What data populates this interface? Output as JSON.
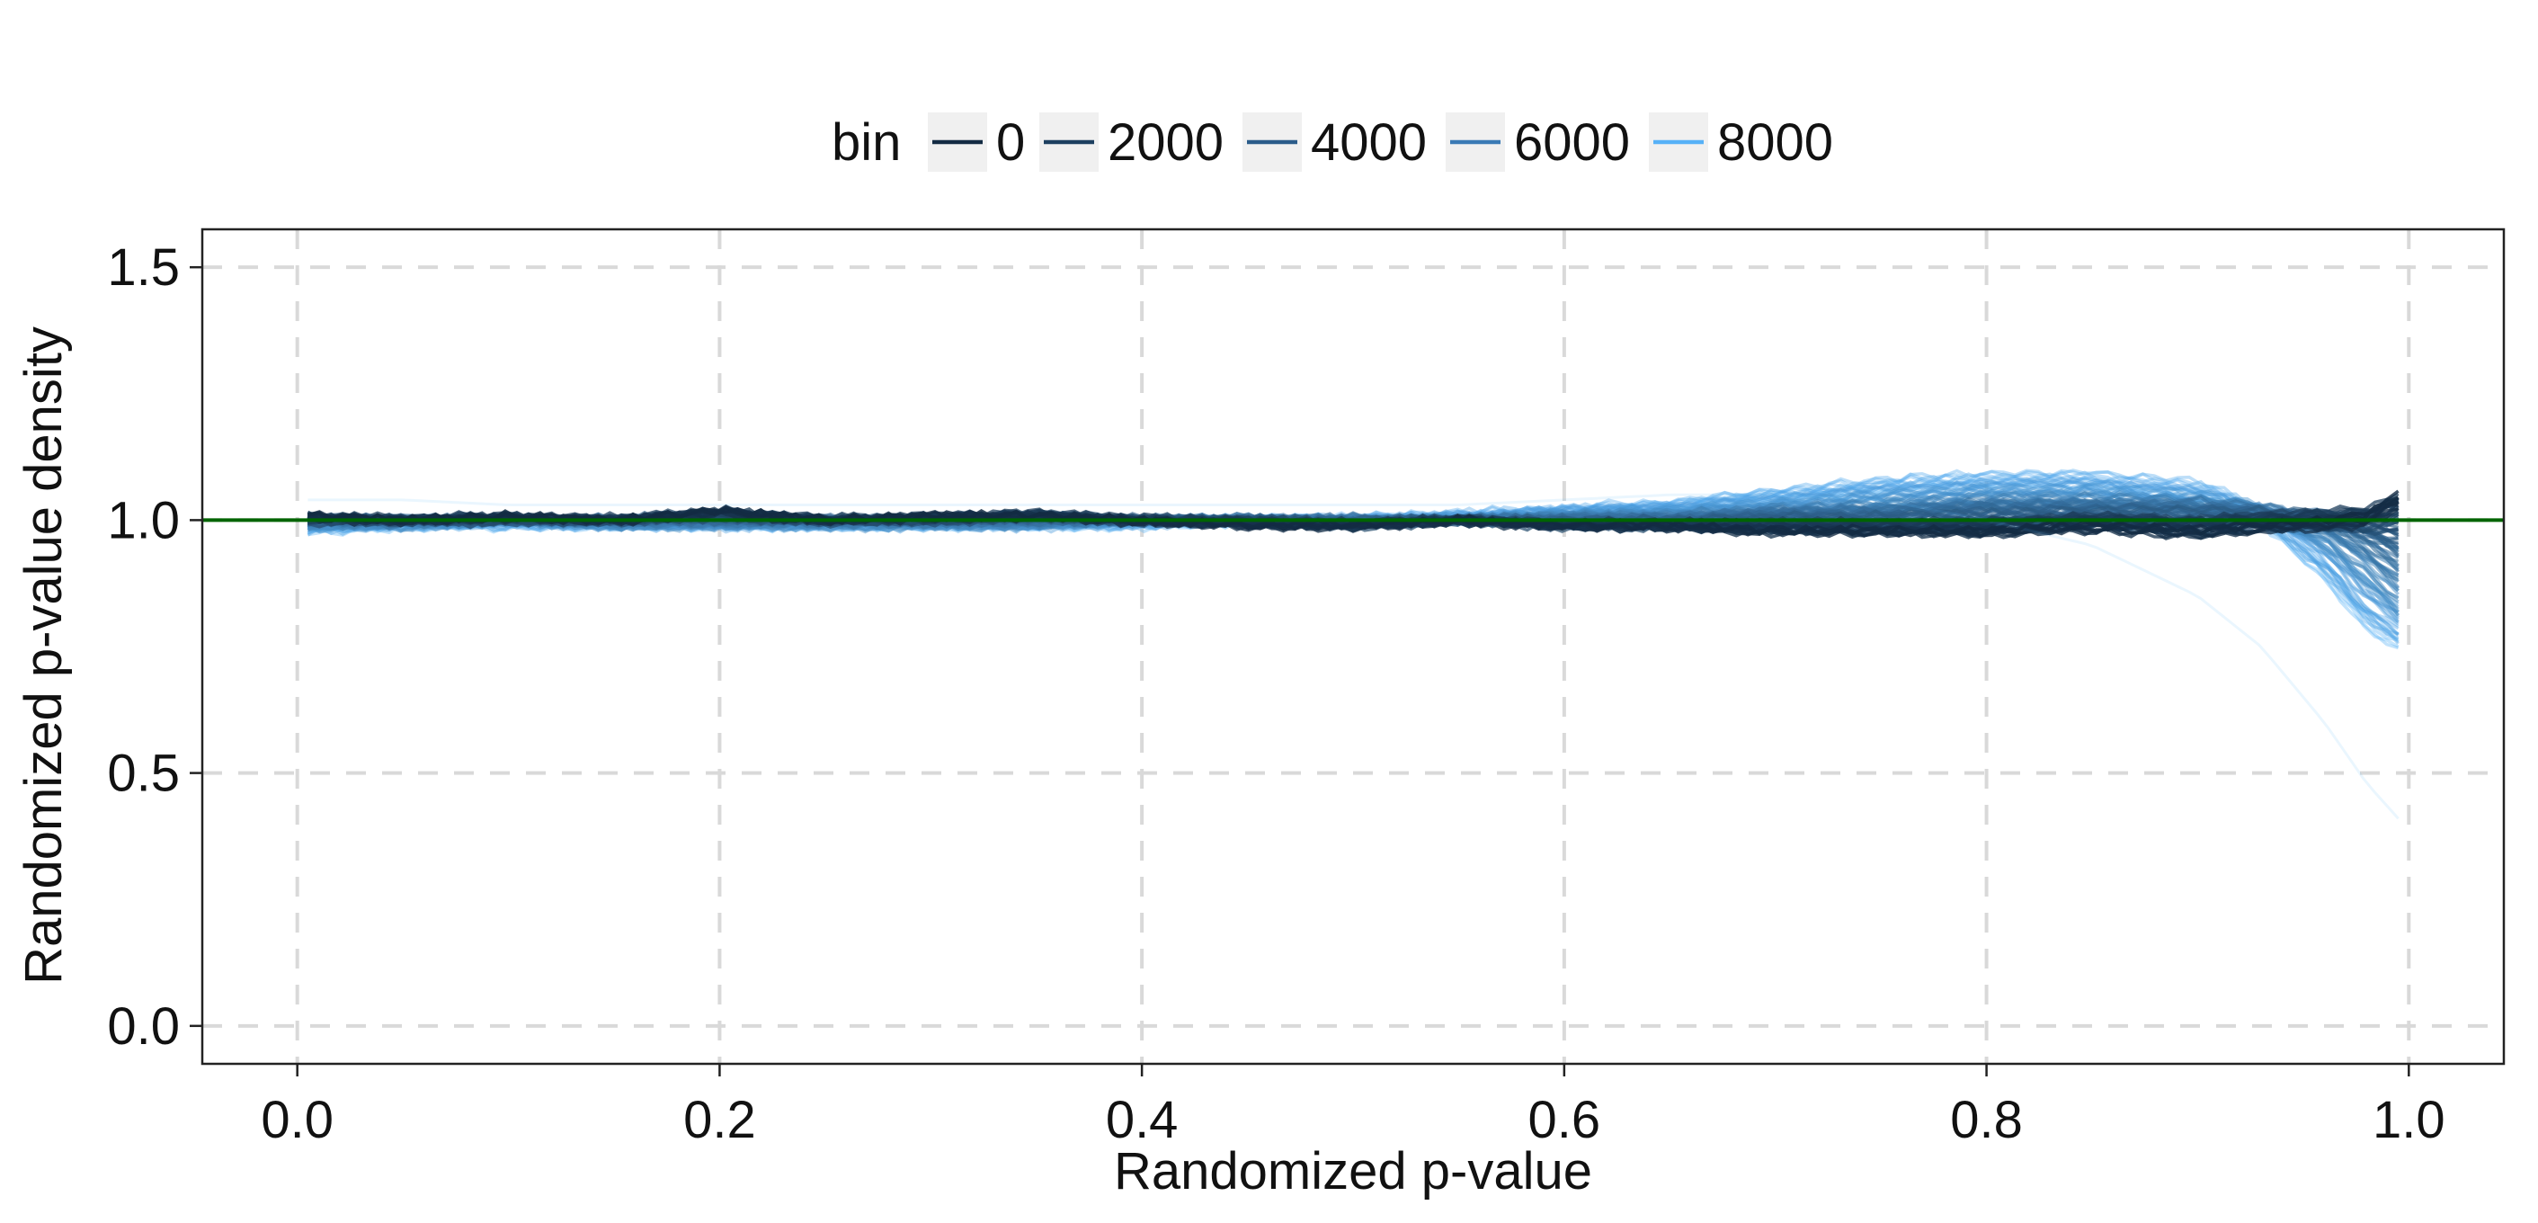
{
  "chart_data": {
    "type": "line",
    "xlabel": "Randomized p-value",
    "ylabel": "Randomized p-value density",
    "xlim": [
      -0.045,
      1.045
    ],
    "ylim": [
      -0.075,
      1.575
    ],
    "x_ticks": [
      0.0,
      0.2,
      0.4,
      0.6,
      0.8,
      1.0
    ],
    "x_tick_labels": [
      "0.0",
      "0.2",
      "0.4",
      "0.6",
      "0.8",
      "1.0"
    ],
    "y_ticks": [
      0.0,
      0.5,
      1.0,
      1.5
    ],
    "y_tick_labels": [
      "0.0",
      "0.5",
      "1.0",
      "1.5"
    ],
    "grid": true,
    "grid_style": "dashed",
    "legend": {
      "title": "bin",
      "position": "top",
      "entries": [
        {
          "label": "0",
          "color": "#132b43"
        },
        {
          "label": "2000",
          "color": "#1d3f60"
        },
        {
          "label": "4000",
          "color": "#2b5c8a"
        },
        {
          "label": "6000",
          "color": "#3a7ab5"
        },
        {
          "label": "8000",
          "color": "#56b1f7"
        }
      ]
    },
    "reference_line": {
      "y": 1.0,
      "color": "#006400"
    },
    "series_range": {
      "bin_min": 0,
      "bin_max": 8500,
      "x_min": 0.005,
      "x_max": 0.995
    },
    "x_profile": [
      0.005,
      0.05,
      0.1,
      0.15,
      0.2,
      0.25,
      0.3,
      0.35,
      0.4,
      0.45,
      0.5,
      0.55,
      0.6,
      0.65,
      0.7,
      0.75,
      0.8,
      0.85,
      0.9,
      0.93,
      0.96,
      0.98,
      0.995
    ],
    "series": [
      {
        "bin": 0,
        "values": [
          1.01,
          1.0,
          1.01,
          1.0,
          1.02,
          1.0,
          1.01,
          1.01,
          1.0,
          0.99,
          0.99,
          1.0,
          0.99,
          0.99,
          0.98,
          0.98,
          0.98,
          0.99,
          0.98,
          0.99,
          1.0,
          1.01,
          1.05
        ]
      },
      {
        "bin": 2000,
        "values": [
          1.0,
          1.0,
          1.0,
          1.0,
          1.01,
          1.0,
          1.0,
          1.01,
          1.0,
          1.0,
          0.99,
          1.0,
          0.99,
          0.99,
          0.99,
          0.99,
          0.99,
          1.0,
          0.99,
          1.0,
          1.0,
          1.0,
          1.01
        ]
      },
      {
        "bin": 4000,
        "values": [
          1.0,
          1.0,
          1.0,
          1.0,
          1.0,
          1.0,
          1.0,
          1.0,
          1.0,
          1.0,
          1.0,
          1.0,
          1.0,
          1.0,
          1.01,
          1.01,
          1.02,
          1.02,
          1.02,
          1.01,
          1.0,
          0.97,
          0.93
        ]
      },
      {
        "bin": 6000,
        "values": [
          0.99,
          0.99,
          1.0,
          0.99,
          0.99,
          0.99,
          0.99,
          0.99,
          1.0,
          1.0,
          1.0,
          1.0,
          1.01,
          1.01,
          1.02,
          1.03,
          1.04,
          1.04,
          1.03,
          1.02,
          0.97,
          0.9,
          0.84
        ]
      },
      {
        "bin": 8000,
        "values": [
          0.98,
          0.99,
          0.99,
          0.99,
          0.99,
          0.99,
          0.99,
          0.99,
          0.99,
          1.0,
          1.0,
          1.01,
          1.02,
          1.03,
          1.05,
          1.07,
          1.08,
          1.08,
          1.06,
          1.01,
          0.9,
          0.8,
          0.76
        ]
      }
    ],
    "outlier_series": {
      "values": [
        1.04,
        1.04,
        1.03,
        1.03,
        1.03,
        1.03,
        1.03,
        1.03,
        1.03,
        1.03,
        1.03,
        1.03,
        1.04,
        1.05,
        1.05,
        1.04,
        1.0,
        0.95,
        0.85,
        0.75,
        0.6,
        0.48,
        0.41
      ]
    }
  }
}
